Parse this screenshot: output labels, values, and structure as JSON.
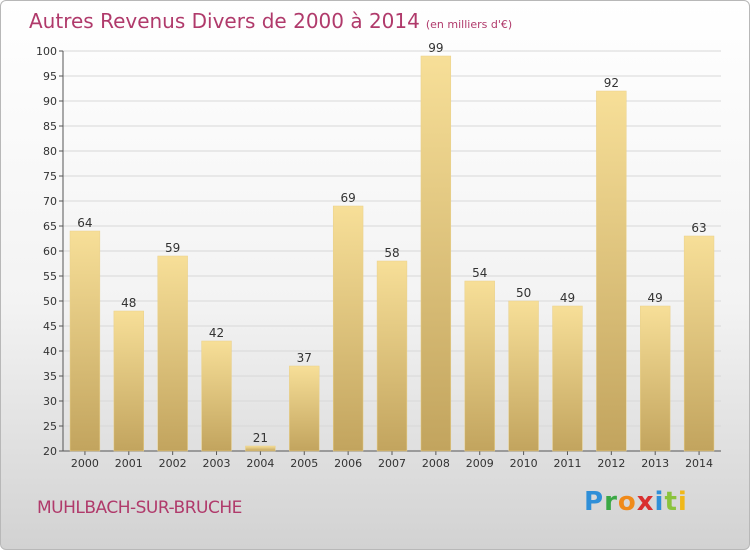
{
  "title": "Autres Revenus Divers de 2000 à 2014",
  "subtitle": "(en milliers d'€)",
  "location": "MUHLBACH-SUR-BRUCHE",
  "logo_text": "Proxiti",
  "colors": {
    "title": "#b03a6b",
    "bar_top": "#f7df98",
    "bar_bottom": "#c2a45e",
    "grid": "#d8d8d8"
  },
  "chart_data": {
    "type": "bar",
    "title": "Autres Revenus Divers de 2000 à 2014",
    "subtitle": "(en milliers d'€)",
    "xlabel": "",
    "ylabel": "",
    "categories": [
      "2000",
      "2001",
      "2002",
      "2003",
      "2004",
      "2005",
      "2006",
      "2007",
      "2008",
      "2009",
      "2010",
      "2011",
      "2012",
      "2013",
      "2014"
    ],
    "values": [
      64,
      48,
      59,
      42,
      21,
      37,
      69,
      58,
      99,
      54,
      50,
      49,
      92,
      49,
      63
    ],
    "ylim": [
      20,
      100
    ],
    "yticks": [
      20,
      25,
      30,
      35,
      40,
      45,
      50,
      55,
      60,
      65,
      70,
      75,
      80,
      85,
      90,
      95,
      100
    ],
    "grid": true,
    "legend": "none"
  }
}
